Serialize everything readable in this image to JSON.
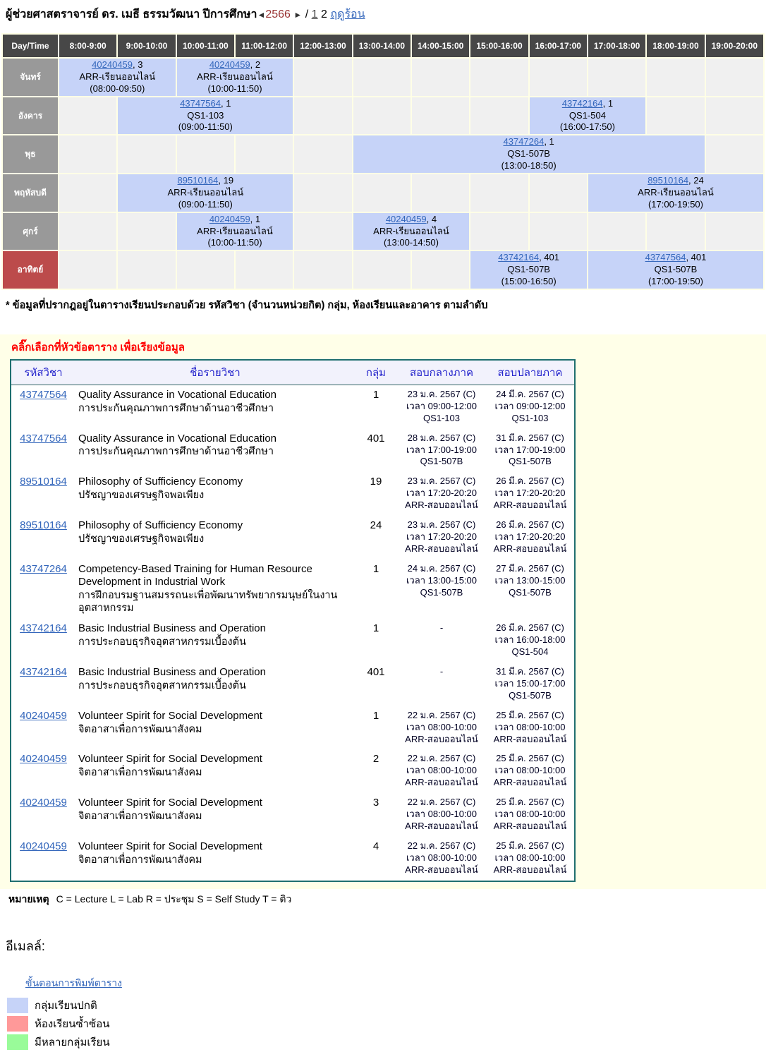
{
  "page": {
    "title_name": "ผู้ช่วยศาสตราจารย์ ดร. เมธี ธรรมวัฒนา",
    "year_label": "ปีการศึกษา",
    "prev_arrow": "◄",
    "year": "2566",
    "next_arrow": "►",
    "separator": "/",
    "semester1": "1",
    "semester2": "2",
    "summer_label": "ฤดูร้อน"
  },
  "timetable": {
    "corner_label": "Day/Time",
    "time_headers": [
      "8:00-9:00",
      "9:00-10:00",
      "10:00-11:00",
      "11:00-12:00",
      "12:00-13:00",
      "13:00-14:00",
      "14:00-15:00",
      "15:00-16:00",
      "16:00-17:00",
      "17:00-18:00",
      "18:00-19:00",
      "19:00-20:00"
    ],
    "rows": [
      {
        "day": "จันทร์",
        "sunday": false,
        "cells": [
          {
            "type": "event",
            "span": 2,
            "code": "40240459",
            "group": "3",
            "room": "ARR-เรียนออนไลน์",
            "time": "(08:00-09:50)"
          },
          {
            "type": "event",
            "span": 2,
            "code": "40240459",
            "group": "2",
            "room": "ARR-เรียนออนไลน์",
            "time": "(10:00-11:50)"
          },
          {
            "type": "empty",
            "count": 8
          }
        ]
      },
      {
        "day": "อังคาร",
        "sunday": false,
        "cells": [
          {
            "type": "empty",
            "count": 1
          },
          {
            "type": "event",
            "span": 3,
            "code": "43747564",
            "group": "1",
            "room": "QS1-103",
            "time": "(09:00-11:50)"
          },
          {
            "type": "empty",
            "count": 4
          },
          {
            "type": "event",
            "span": 2,
            "code": "43742164",
            "group": "1",
            "room": "QS1-504",
            "time": "(16:00-17:50)"
          },
          {
            "type": "empty",
            "count": 2
          }
        ]
      },
      {
        "day": "พุธ",
        "sunday": false,
        "cells": [
          {
            "type": "empty",
            "count": 5
          },
          {
            "type": "event",
            "span": 6,
            "code": "43747264",
            "group": "1",
            "room": "QS1-507B",
            "time": "(13:00-18:50)"
          },
          {
            "type": "empty",
            "count": 1
          }
        ]
      },
      {
        "day": "พฤหัสบดี",
        "sunday": false,
        "cells": [
          {
            "type": "empty",
            "count": 1
          },
          {
            "type": "event",
            "span": 3,
            "code": "89510164",
            "group": "19",
            "room": "ARR-เรียนออนไลน์",
            "time": "(09:00-11:50)"
          },
          {
            "type": "empty",
            "count": 5
          },
          {
            "type": "event",
            "span": 3,
            "code": "89510164",
            "group": "24",
            "room": "ARR-เรียนออนไลน์",
            "time": "(17:00-19:50)"
          }
        ]
      },
      {
        "day": "ศุกร์",
        "sunday": false,
        "cells": [
          {
            "type": "empty",
            "count": 2
          },
          {
            "type": "event",
            "span": 2,
            "code": "40240459",
            "group": "1",
            "room": "ARR-เรียนออนไลน์",
            "time": "(10:00-11:50)"
          },
          {
            "type": "empty",
            "count": 1
          },
          {
            "type": "event",
            "span": 2,
            "code": "40240459",
            "group": "4",
            "room": "ARR-เรียนออนไลน์",
            "time": "(13:00-14:50)"
          },
          {
            "type": "empty",
            "count": 5
          }
        ]
      },
      {
        "day": "อาทิตย์",
        "sunday": true,
        "cells": [
          {
            "type": "empty",
            "count": 7
          },
          {
            "type": "event",
            "span": 2,
            "code": "43742164",
            "group": "401",
            "room": "QS1-507B",
            "time": "(15:00-16:50)"
          },
          {
            "type": "event",
            "span": 3,
            "code": "43747564",
            "group": "401",
            "room": "QS1-507B",
            "time": "(17:00-19:50)"
          }
        ]
      }
    ]
  },
  "grid_note": "* ข้อมูลที่ปรากฎอยู่ในตารางเรียนประกอบด้วย รหัสวิชา (จำนวนหน่วยกิต) กลุ่ม, ห้องเรียนและอาคาร ตามลำดับ",
  "sort_hint": "คลิ๊กเลือกที่หัวข้อตาราง เพื่อเรียงข้อมูล",
  "course_table": {
    "headers": [
      "รหัสวิชา",
      "ชื่อรายวิชา",
      "กลุ่ม",
      "สอบกลางภาค",
      "สอบปลายภาค"
    ],
    "rows": [
      {
        "code": "43747564",
        "name_en": "Quality Assurance in Vocational Education",
        "name_th": "การประกันคุณภาพการศึกษาด้านอาชีวศึกษา",
        "group": "1",
        "midterm": [
          "23 ม.ค. 2567 (C)",
          "เวลา 09:00-12:00",
          "QS1-103"
        ],
        "final": [
          "24 มี.ค. 2567 (C)",
          "เวลา 09:00-12:00",
          "QS1-103"
        ]
      },
      {
        "code": "43747564",
        "name_en": "Quality Assurance in Vocational Education",
        "name_th": "การประกันคุณภาพการศึกษาด้านอาชีวศึกษา",
        "group": "401",
        "midterm": [
          "28 ม.ค. 2567 (C)",
          "เวลา 17:00-19:00",
          "QS1-507B"
        ],
        "final": [
          "31 มี.ค. 2567 (C)",
          "เวลา 17:00-19:00",
          "QS1-507B"
        ]
      },
      {
        "code": "89510164",
        "name_en": "Philosophy of Sufficiency Economy",
        "name_th": "ปรัชญาของเศรษฐกิจพอเพียง",
        "group": "19",
        "midterm": [
          "23 ม.ค. 2567 (C)",
          "เวลา 17:20-20:20",
          "ARR-สอบออนไลน์"
        ],
        "final": [
          "26 มี.ค. 2567 (C)",
          "เวลา 17:20-20:20",
          "ARR-สอบออนไลน์"
        ]
      },
      {
        "code": "89510164",
        "name_en": "Philosophy of Sufficiency Economy",
        "name_th": "ปรัชญาของเศรษฐกิจพอเพียง",
        "group": "24",
        "midterm": [
          "23 ม.ค. 2567 (C)",
          "เวลา 17:20-20:20",
          "ARR-สอบออนไลน์"
        ],
        "final": [
          "26 มี.ค. 2567 (C)",
          "เวลา 17:20-20:20",
          "ARR-สอบออนไลน์"
        ]
      },
      {
        "code": "43747264",
        "name_en": "Competency-Based Training for Human Resource Development in Industrial Work",
        "name_th": "การฝึกอบรมฐานสมรรถนะเพื่อพัฒนาทรัพยากรมนุษย์ในงานอุตสาหกรรม",
        "group": "1",
        "midterm": [
          "24 ม.ค. 2567 (C)",
          "เวลา 13:00-15:00",
          "QS1-507B"
        ],
        "final": [
          "27 มี.ค. 2567 (C)",
          "เวลา 13:00-15:00",
          "QS1-507B"
        ]
      },
      {
        "code": "43742164",
        "name_en": "Basic Industrial Business and Operation",
        "name_th": "การประกอบธุรกิจอุตสาหกรรมเบื้องต้น",
        "group": "1",
        "midterm": [
          "-"
        ],
        "final": [
          "26 มี.ค. 2567 (C)",
          "เวลา 16:00-18:00",
          "QS1-504"
        ]
      },
      {
        "code": "43742164",
        "name_en": "Basic Industrial Business and Operation",
        "name_th": "การประกอบธุรกิจอุตสาหกรรมเบื้องต้น",
        "group": "401",
        "midterm": [
          "-"
        ],
        "final": [
          "31 มี.ค. 2567 (C)",
          "เวลา 15:00-17:00",
          "QS1-507B"
        ]
      },
      {
        "code": "40240459",
        "name_en": "Volunteer Spirit for Social Development",
        "name_th": "จิตอาสาเพื่อการพัฒนาสังคม",
        "group": "1",
        "midterm": [
          "22 ม.ค. 2567 (C)",
          "เวลา 08:00-10:00",
          "ARR-สอบออนไลน์"
        ],
        "final": [
          "25 มี.ค. 2567 (C)",
          "เวลา 08:00-10:00",
          "ARR-สอบออนไลน์"
        ]
      },
      {
        "code": "40240459",
        "name_en": "Volunteer Spirit for Social Development",
        "name_th": "จิตอาสาเพื่อการพัฒนาสังคม",
        "group": "2",
        "midterm": [
          "22 ม.ค. 2567 (C)",
          "เวลา 08:00-10:00",
          "ARR-สอบออนไลน์"
        ],
        "final": [
          "25 มี.ค. 2567 (C)",
          "เวลา 08:00-10:00",
          "ARR-สอบออนไลน์"
        ]
      },
      {
        "code": "40240459",
        "name_en": "Volunteer Spirit for Social Development",
        "name_th": "จิตอาสาเพื่อการพัฒนาสังคม",
        "group": "3",
        "midterm": [
          "22 ม.ค. 2567 (C)",
          "เวลา 08:00-10:00",
          "ARR-สอบออนไลน์"
        ],
        "final": [
          "25 มี.ค. 2567 (C)",
          "เวลา 08:00-10:00",
          "ARR-สอบออนไลน์"
        ]
      },
      {
        "code": "40240459",
        "name_en": "Volunteer Spirit for Social Development",
        "name_th": "จิตอาสาเพื่อการพัฒนาสังคม",
        "group": "4",
        "midterm": [
          "22 ม.ค. 2567 (C)",
          "เวลา 08:00-10:00",
          "ARR-สอบออนไลน์"
        ],
        "final": [
          "25 มี.ค. 2567 (C)",
          "เวลา 08:00-10:00",
          "ARR-สอบออนไลน์"
        ]
      }
    ]
  },
  "footer": {
    "notes_label": "หมายเหตุ",
    "notes_text": "C = Lecture  L = Lab  R = ประชุม  S = Self Study  T = ติว",
    "email_label": "อีเมลล์:",
    "print_link": "ขั้นตอนการพิมพ์ตาราง",
    "legend": [
      {
        "color": "#C6D3F8",
        "label": "กลุ่มเรียนปกติ"
      },
      {
        "color": "#FF9999",
        "label": "ห้องเรียนซ้ำซ้อน"
      },
      {
        "color": "#99FB99",
        "label": "มีหลายกลุ่มเรียน"
      }
    ]
  },
  "colors": {
    "event_cell": "#C6D3F8",
    "empty_cell": "#F0F0F0",
    "grid_header": "#474747",
    "day_label": "#999999",
    "sunday_label": "#BC4B4B",
    "course_border": "#1F6F6F",
    "course_header_text": "#2424CC",
    "hint_red": "#FF0000",
    "year_red": "#993333",
    "link_blue": "#3366BB",
    "section_bg": "#FFFFE8"
  }
}
